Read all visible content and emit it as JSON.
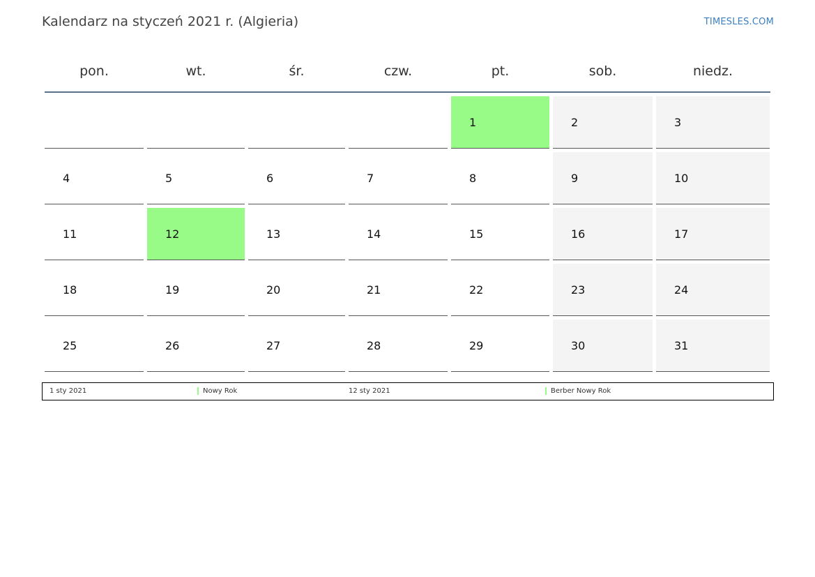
{
  "header": {
    "title": "Kalendarz na styczeń 2021 r. (Algieria)",
    "site": "TIMESLES.COM"
  },
  "calendar": {
    "weekdays": [
      "pon.",
      "wt.",
      "śr.",
      "czw.",
      "pt.",
      "sob.",
      "niedz."
    ],
    "weeks": [
      [
        "",
        "",
        "",
        "",
        "1",
        "2",
        "3"
      ],
      [
        "4",
        "5",
        "6",
        "7",
        "8",
        "9",
        "10"
      ],
      [
        "11",
        "12",
        "13",
        "14",
        "15",
        "16",
        "17"
      ],
      [
        "18",
        "19",
        "20",
        "21",
        "22",
        "23",
        "24"
      ],
      [
        "25",
        "26",
        "27",
        "28",
        "29",
        "30",
        "31"
      ]
    ],
    "holiday_days": [
      "1",
      "12"
    ],
    "colors": {
      "holiday": "#98fb88",
      "weekend": "#f4f4f4",
      "header_rule": "#5a6f8a",
      "link": "#3a7fc1"
    }
  },
  "legend": {
    "entries": [
      {
        "date": "1 sty 2021",
        "name": "Nowy Rok"
      },
      {
        "date": "12 sty 2021",
        "name": "Berber Nowy Rok"
      }
    ]
  }
}
